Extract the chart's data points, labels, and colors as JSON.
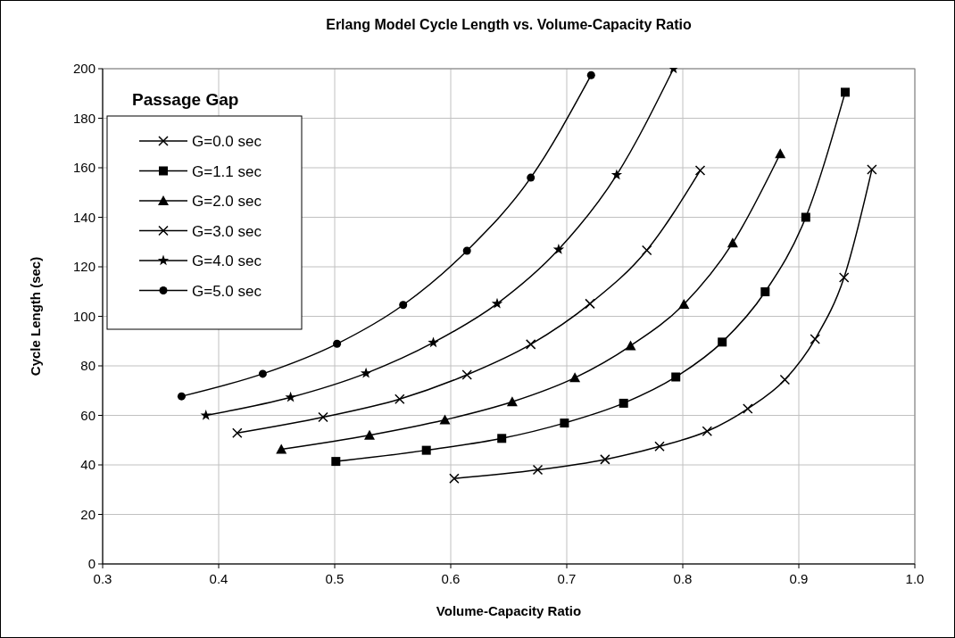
{
  "chart_data": {
    "type": "line",
    "title": "Erlang Model Cycle Length vs. Volume-Capacity Ratio",
    "xlabel": "Volume-Capacity Ratio",
    "ylabel": "Cycle Length (sec)",
    "legend_title": "Passage Gap",
    "legend": "top left",
    "grid": true,
    "xlim": [
      0.3,
      1.0
    ],
    "xticks": [
      {
        "value": 0.3,
        "label": "0.3"
      },
      {
        "value": 0.4,
        "label": "0.4"
      },
      {
        "value": 0.5,
        "label": "0.5"
      },
      {
        "value": 0.6,
        "label": "0.6"
      },
      {
        "value": 0.7,
        "label": "0.7"
      },
      {
        "value": 0.8,
        "label": "0.8"
      },
      {
        "value": 0.9,
        "label": "0.9"
      },
      {
        "value": 1.0,
        "label": "1.0"
      }
    ],
    "ylim": [
      0,
      200
    ],
    "yticks": [
      0,
      20,
      40,
      60,
      80,
      100,
      120,
      140,
      160,
      180,
      200
    ],
    "series": [
      {
        "name": "G=0.0 sec",
        "color": "#000000",
        "marker": "cross",
        "x": [
          0.603,
          0.675,
          0.733,
          0.78,
          0.821,
          0.856,
          0.888,
          0.914,
          0.939,
          0.963
        ],
        "values": [
          34.5,
          38,
          42.2,
          47.5,
          53.6,
          62.7,
          74.4,
          90.8,
          115.7,
          159.3
        ]
      },
      {
        "name": "G=1.1 sec",
        "color": "#000000",
        "marker": "square",
        "x": [
          0.501,
          0.579,
          0.644,
          0.698,
          0.749,
          0.794,
          0.834,
          0.871,
          0.906,
          0.94
        ],
        "values": [
          41.4,
          45.9,
          50.7,
          56.9,
          64.9,
          75.5,
          89.6,
          109.9,
          140,
          190.5
        ]
      },
      {
        "name": "G=2.0 sec",
        "color": "#000000",
        "marker": "triangle",
        "x": [
          0.454,
          0.53,
          0.595,
          0.653,
          0.707,
          0.755,
          0.801,
          0.843,
          0.884
        ],
        "values": [
          46.3,
          52,
          58.2,
          65.5,
          75.2,
          88.1,
          104.9,
          129.6,
          165.7
        ]
      },
      {
        "name": "G=3.0 sec",
        "color": "#000000",
        "marker": "cross",
        "x": [
          0.416,
          0.49,
          0.556,
          0.614,
          0.669,
          0.72,
          0.769,
          0.815
        ],
        "values": [
          52.9,
          59.3,
          66.6,
          76.4,
          88.7,
          105.1,
          126.7,
          158.9
        ]
      },
      {
        "name": "G=4.0 sec",
        "color": "#000000",
        "marker": "star",
        "x": [
          0.389,
          0.462,
          0.527,
          0.585,
          0.64,
          0.693,
          0.743,
          0.792
        ],
        "values": [
          60,
          67.3,
          77,
          89.4,
          105.1,
          127,
          157.1,
          200
        ]
      },
      {
        "name": "G=5.0 sec",
        "color": "#000000",
        "marker": "circle",
        "x": [
          0.368,
          0.438,
          0.502,
          0.559,
          0.614,
          0.669,
          0.721
        ],
        "values": [
          67.7,
          76.8,
          88.9,
          104.6,
          126.5,
          156,
          197.4
        ]
      }
    ]
  }
}
